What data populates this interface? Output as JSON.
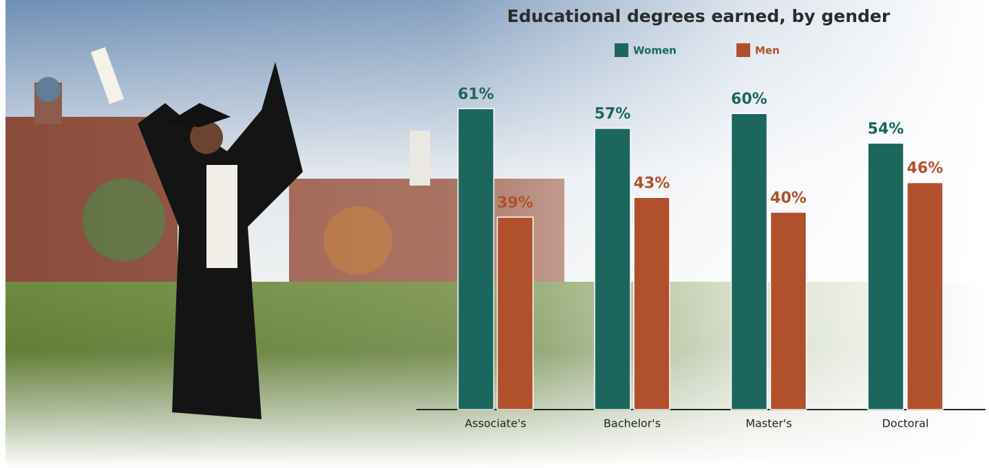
{
  "chart_data": {
    "type": "bar",
    "title": "Educational degrees earned, by gender",
    "categories": [
      "Associate's",
      "Bachelor's",
      "Master's",
      "Doctoral"
    ],
    "series": [
      {
        "name": "Women",
        "color": "#1d665e",
        "values": [
          61,
          57,
          60,
          54
        ],
        "value_labels": [
          "61%",
          "57%",
          "60%",
          "54%"
        ]
      },
      {
        "name": "Men",
        "color": "#b0502c",
        "values": [
          39,
          43,
          40,
          46
        ],
        "value_labels": [
          "39%",
          "43%",
          "40%",
          "46%"
        ]
      }
    ]
  }
}
